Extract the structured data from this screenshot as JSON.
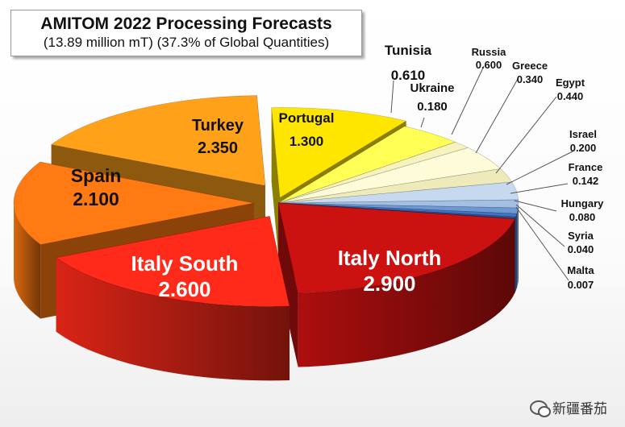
{
  "title": "AMITOM 2022 Processing Forecasts",
  "subtitle": "(13.89 million mT) (37.3% of Global Quantities)",
  "watermark": "新疆番茄",
  "chart_data": {
    "type": "pie",
    "unit": "million mT",
    "slices": [
      {
        "label": "Portugal",
        "value": 1.3,
        "value_text": "1.300",
        "color": "#ffe600"
      },
      {
        "label": "Tunisia",
        "value": 0.61,
        "value_text": "0.610",
        "color": "#ffff55"
      },
      {
        "label": "Ukraine",
        "value": 0.18,
        "value_text": "0.180",
        "color": "#f7f3bf"
      },
      {
        "label": "Russia",
        "value": 0.6,
        "value_text": "0.600",
        "color": "#fdfbd8"
      },
      {
        "label": "Greece",
        "value": 0.34,
        "value_text": "0.340",
        "color": "#eeeaba"
      },
      {
        "label": "Egypt",
        "value": 0.44,
        "value_text": "0.440",
        "color": "#c6d9ef"
      },
      {
        "label": "Israel",
        "value": 0.2,
        "value_text": "0.200",
        "color": "#a3c0e4"
      },
      {
        "label": "France",
        "value": 0.142,
        "value_text": "0.142",
        "color": "#6e98d2"
      },
      {
        "label": "Hungary",
        "value": 0.08,
        "value_text": "0.080",
        "color": "#4472c4"
      },
      {
        "label": "Syria",
        "value": 0.04,
        "value_text": "0.040",
        "color": "#2f5597"
      },
      {
        "label": "Malta",
        "value": 0.007,
        "value_text": "0.007",
        "color": "#1f3864"
      },
      {
        "label": "Italy North",
        "value": 2.9,
        "value_text": "2.900",
        "color": "#cc1111"
      },
      {
        "label": "Italy South",
        "value": 2.6,
        "value_text": "2.600",
        "color": "#ff2a1a"
      },
      {
        "label": "Spain",
        "value": 2.1,
        "value_text": "2.100",
        "color": "#ff7a12"
      },
      {
        "label": "Turkey",
        "value": 2.35,
        "value_text": "2.350",
        "color": "#ffa21a"
      }
    ]
  }
}
